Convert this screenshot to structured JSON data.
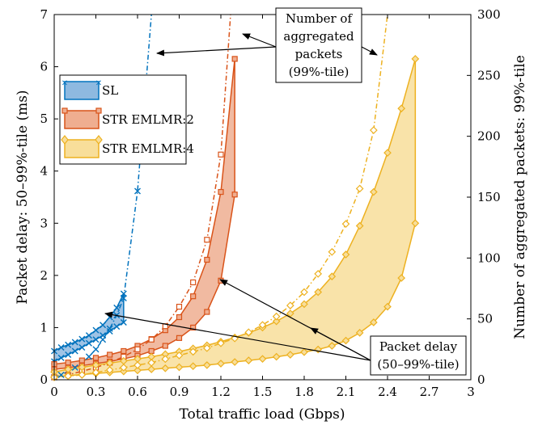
{
  "chart_data": {
    "type": "line",
    "xlabel": "Total traffic load (Gbps)",
    "ylabel_left": "Packet delay: 50–99%-tile (ms)",
    "ylabel_right": "Number of aggregated packets: 99%-tile",
    "xlim": [
      0,
      3
    ],
    "ylim_left": [
      0,
      7
    ],
    "ylim_right": [
      0,
      300
    ],
    "xticks": [
      "0",
      "0.3",
      "0.6",
      "0.9",
      "1.2",
      "1.5",
      "1.8",
      "2.1",
      "2.4",
      "2.7",
      "3"
    ],
    "yticks_left": [
      "0",
      "1",
      "2",
      "3",
      "4",
      "5",
      "6",
      "7"
    ],
    "yticks_right": [
      "0",
      "50",
      "100",
      "150",
      "200",
      "250",
      "300"
    ],
    "grid": false,
    "legend_position": "upper-left",
    "series": [
      {
        "name": "SL",
        "color": "#0072BD",
        "fill": "#8EB9E0",
        "marker": "x-icon",
        "delay_p50": {
          "x": [
            0,
            0.05,
            0.1,
            0.15,
            0.2,
            0.25,
            0.3,
            0.35,
            0.4,
            0.45,
            0.5
          ],
          "y": [
            0.35,
            0.42,
            0.48,
            0.55,
            0.62,
            0.7,
            0.77,
            0.85,
            0.93,
            1.02,
            1.1
          ]
        },
        "delay_p99": {
          "x": [
            0,
            0.05,
            0.1,
            0.15,
            0.2,
            0.25,
            0.3,
            0.35,
            0.4,
            0.45,
            0.5
          ],
          "y": [
            0.55,
            0.62,
            0.67,
            0.72,
            0.78,
            0.85,
            0.95,
            1.05,
            1.2,
            1.38,
            1.65
          ]
        },
        "aggregated_p99": {
          "x": [
            0,
            0.05,
            0.1,
            0.15,
            0.2,
            0.25,
            0.3,
            0.35,
            0.4,
            0.45,
            0.5,
            0.6,
            0.7
          ],
          "y": [
            2,
            4,
            7,
            10,
            14,
            19,
            25,
            33,
            42,
            53,
            67,
            155,
            300
          ]
        }
      },
      {
        "name": "STR EMLMR:2",
        "color": "#D95319",
        "fill": "#EFAE90",
        "marker": "square-icon",
        "delay_p50": {
          "x": [
            0,
            0.1,
            0.2,
            0.3,
            0.4,
            0.5,
            0.6,
            0.7,
            0.8,
            0.9,
            1.0,
            1.1,
            1.2,
            1.3
          ],
          "y": [
            0.2,
            0.23,
            0.27,
            0.31,
            0.35,
            0.4,
            0.46,
            0.55,
            0.65,
            0.8,
            1.0,
            1.3,
            1.9,
            3.55
          ]
        },
        "delay_p99": {
          "x": [
            0,
            0.1,
            0.2,
            0.3,
            0.4,
            0.5,
            0.6,
            0.7,
            0.8,
            0.9,
            1.0,
            1.1,
            1.2,
            1.3
          ],
          "y": [
            0.3,
            0.33,
            0.37,
            0.42,
            0.48,
            0.55,
            0.65,
            0.78,
            0.95,
            1.2,
            1.6,
            2.3,
            3.6,
            6.15
          ]
        },
        "aggregated_p99": {
          "x": [
            0,
            0.1,
            0.2,
            0.3,
            0.4,
            0.5,
            0.6,
            0.7,
            0.8,
            0.9,
            1.0,
            1.1,
            1.2,
            1.27
          ],
          "y": [
            2,
            4,
            7,
            10,
            14,
            19,
            25,
            33,
            44,
            60,
            80,
            115,
            185,
            300
          ]
        }
      },
      {
        "name": "STR EMLMR:4",
        "color": "#EDB120",
        "fill": "#F8DE9A",
        "marker": "diamond-icon",
        "delay_p50": {
          "x": [
            0,
            0.1,
            0.2,
            0.3,
            0.4,
            0.5,
            0.6,
            0.7,
            0.8,
            0.9,
            1.0,
            1.1,
            1.2,
            1.3,
            1.4,
            1.5,
            1.6,
            1.7,
            1.8,
            1.9,
            2.0,
            2.1,
            2.2,
            2.3,
            2.4,
            2.5,
            2.6
          ],
          "y": [
            0.05,
            0.08,
            0.1,
            0.12,
            0.14,
            0.16,
            0.18,
            0.2,
            0.22,
            0.24,
            0.26,
            0.28,
            0.31,
            0.34,
            0.37,
            0.4,
            0.44,
            0.48,
            0.53,
            0.58,
            0.65,
            0.75,
            0.9,
            1.1,
            1.4,
            1.95,
            3.0
          ]
        },
        "delay_p99": {
          "x": [
            0,
            0.1,
            0.2,
            0.3,
            0.4,
            0.5,
            0.6,
            0.7,
            0.8,
            0.9,
            1.0,
            1.1,
            1.2,
            1.3,
            1.4,
            1.5,
            1.6,
            1.7,
            1.8,
            1.9,
            2.0,
            2.1,
            2.2,
            2.3,
            2.4,
            2.5,
            2.6
          ],
          "y": [
            0.15,
            0.2,
            0.24,
            0.28,
            0.32,
            0.36,
            0.4,
            0.44,
            0.49,
            0.54,
            0.6,
            0.66,
            0.73,
            0.81,
            0.9,
            1.0,
            1.12,
            1.27,
            1.45,
            1.68,
            1.98,
            2.4,
            2.95,
            3.6,
            4.35,
            5.2,
            6.15
          ]
        },
        "aggregated_p99": {
          "x": [
            0,
            0.1,
            0.2,
            0.3,
            0.4,
            0.5,
            0.6,
            0.7,
            0.8,
            0.9,
            1.0,
            1.1,
            1.2,
            1.3,
            1.4,
            1.5,
            1.6,
            1.7,
            1.8,
            1.9,
            2.0,
            2.1,
            2.2,
            2.3,
            2.4
          ],
          "y": [
            2,
            3,
            4,
            6,
            8,
            10,
            12,
            14,
            17,
            20,
            23,
            26,
            30,
            34,
            39,
            45,
            52,
            61,
            72,
            87,
            105,
            128,
            157,
            205,
            300
          ]
        }
      }
    ],
    "annotations": [
      {
        "lines": [
          "Number of",
          "aggregated",
          "packets",
          "(99%-tile)"
        ]
      },
      {
        "lines": [
          "Packet delay",
          "(50–99%-tile)"
        ]
      }
    ]
  }
}
